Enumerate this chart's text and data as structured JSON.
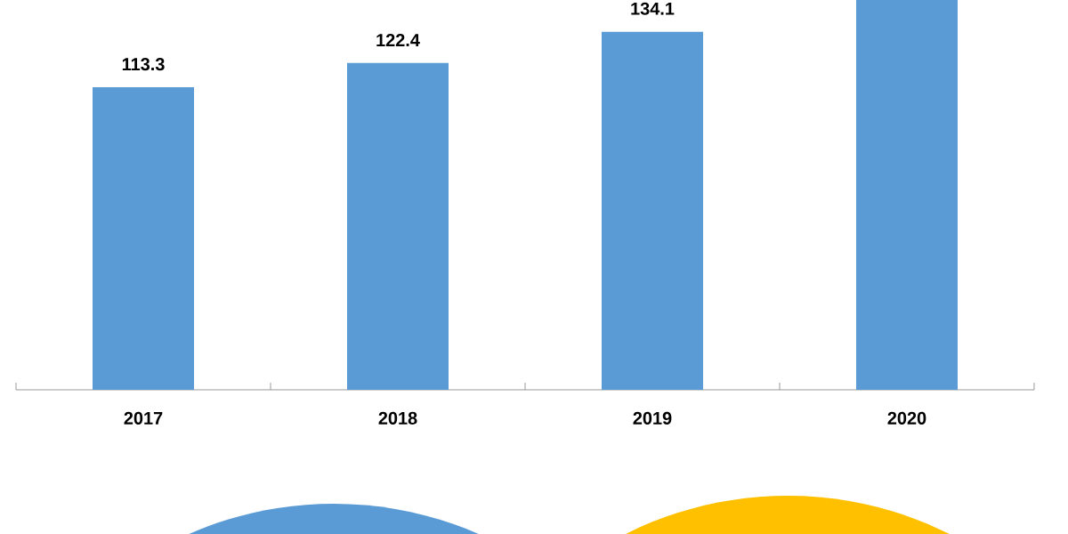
{
  "chart_data": {
    "type": "bar",
    "categories": [
      "2017",
      "2018",
      "2019",
      "2020"
    ],
    "values": [
      113.3,
      122.4,
      134.1,
      146
    ],
    "value_labels": [
      "113.3",
      "122.4",
      "134.1",
      null
    ],
    "color": "#5b9bd5"
  }
}
